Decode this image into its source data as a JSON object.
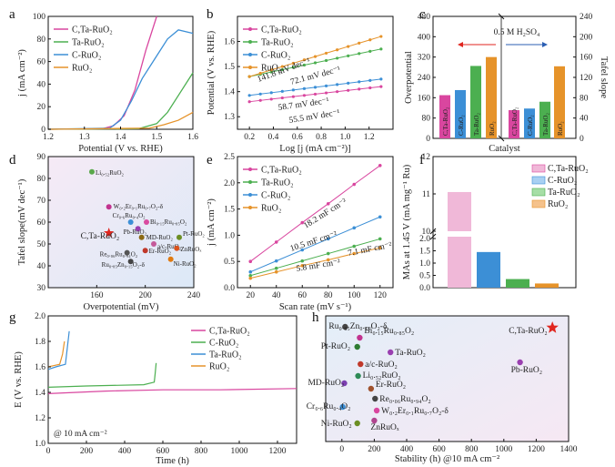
{
  "colors": {
    "ctaruo2": "#d9469f",
    "taruo2": "#4caf50",
    "cruo2": "#3c8fd6",
    "ruo2": "#e6932a",
    "star": "#e0261f"
  },
  "panel_labels": [
    "a",
    "b",
    "c",
    "d",
    "e",
    "f",
    "g",
    "h"
  ],
  "chart_data": [
    {
      "id": "a",
      "type": "line",
      "xlabel": "Potential (V vs. RHE)",
      "ylabel": "j (mA cm⁻²)",
      "xlim": [
        1.2,
        1.6
      ],
      "ylim": [
        0,
        100
      ],
      "xticks": [
        "1.2",
        "1.3",
        "1.4",
        "1.5",
        "1.6"
      ],
      "yticks": [
        "0",
        "20",
        "40",
        "60",
        "80",
        "100"
      ],
      "series": [
        {
          "name": "C,Ta-RuO₂",
          "x": [
            1.2,
            1.35,
            1.38,
            1.41,
            1.44,
            1.47,
            1.5
          ],
          "y": [
            0,
            0.5,
            3,
            12,
            35,
            70,
            100
          ]
        },
        {
          "name": "Ta-RuO₂",
          "x": [
            1.2,
            1.45,
            1.5,
            1.53,
            1.56,
            1.6
          ],
          "y": [
            0,
            0.5,
            5,
            15,
            30,
            50
          ]
        },
        {
          "name": "C-RuO₂",
          "x": [
            1.2,
            1.37,
            1.4,
            1.43,
            1.46,
            1.5,
            1.53,
            1.56,
            1.6
          ],
          "y": [
            0,
            1,
            8,
            25,
            45,
            65,
            80,
            88,
            85
          ]
        },
        {
          "name": "RuO₂",
          "x": [
            1.2,
            1.48,
            1.52,
            1.56,
            1.6
          ],
          "y": [
            0,
            1,
            4,
            8,
            15
          ]
        }
      ]
    },
    {
      "id": "b",
      "type": "line",
      "xlabel": "Log [j (mA cm⁻²)]",
      "ylabel": "Potential (V vs. RHE)",
      "xlim": [
        0.1,
        1.4
      ],
      "ylim": [
        1.25,
        1.7
      ],
      "xticks": [
        "0.2",
        "0.4",
        "0.6",
        "0.8",
        "1.0",
        "1.2"
      ],
      "yticks": [
        "1.3",
        "1.4",
        "1.5",
        "1.6"
      ],
      "series": [
        {
          "name": "C,Ta-RuO₂",
          "x": [
            0.2,
            1.3
          ],
          "y": [
            1.36,
            1.42
          ],
          "label": "55.5 mV dec⁻¹"
        },
        {
          "name": "Ta-RuO₂",
          "x": [
            0.2,
            1.3
          ],
          "y": [
            1.46,
            1.57
          ],
          "label": "72.1 mV dec⁻¹"
        },
        {
          "name": "C-RuO₂",
          "x": [
            0.2,
            1.3
          ],
          "y": [
            1.385,
            1.45
          ],
          "label": "58.7 mV dec⁻¹"
        },
        {
          "name": "RuO₂",
          "x": [
            0.2,
            1.3
          ],
          "y": [
            1.46,
            1.62
          ],
          "label": "141.8 mV dec⁻¹"
        }
      ]
    },
    {
      "id": "c",
      "type": "bar",
      "xlabel": "Catalyst",
      "ylabel": "Overpotential",
      "ylabel_right": "Tafel slope",
      "ylim": [
        0,
        480
      ],
      "ylim_right": [
        0,
        240
      ],
      "yticks": [
        "0",
        "80",
        "160",
        "240",
        "320",
        "400",
        "480"
      ],
      "yticks_right": [
        "0",
        "40",
        "80",
        "120",
        "160",
        "200",
        "240"
      ],
      "note": "0.5 M H₂SO₄",
      "left": {
        "categories": [
          "C,Ta-RuO₂",
          "C-RuO₂",
          "Ta-RuO₂",
          "RuO₂"
        ],
        "values": [
          170,
          190,
          285,
          320
        ]
      },
      "right": {
        "categories": [
          "C,Ta-RuO₂",
          "C-RuO₂",
          "Ta-RuO₂",
          "RuO₂"
        ],
        "values": [
          55.5,
          58.7,
          72.1,
          141.8
        ]
      }
    },
    {
      "id": "d",
      "type": "scatter",
      "xlabel": "Overpotential (mV)",
      "ylabel": "Tafel slope(mV dec⁻¹)",
      "xlim": [
        120,
        240
      ],
      "ylim": [
        30,
        90
      ],
      "xticks": [
        "160",
        "200",
        "240"
      ],
      "yticks": [
        "30",
        "40",
        "50",
        "60",
        "70",
        "80",
        "90"
      ],
      "points": [
        {
          "name": "Li₀.₅₂RuO₂",
          "x": 156,
          "y": 83
        },
        {
          "name": "W₀.₂Er₀.₁Ru₀.₇O₂-δ",
          "x": 170,
          "y": 67
        },
        {
          "name": "C,Ta-RuO₂",
          "x": 170,
          "y": 55
        },
        {
          "name": "Cr₀.₆Ru₀.₄O₂",
          "x": 188,
          "y": 60
        },
        {
          "name": "Pb-RuO₂",
          "x": 194,
          "y": 57
        },
        {
          "name": "Bi₀.₁₅Ru₀.₈₅O₂",
          "x": 201,
          "y": 60
        },
        {
          "name": "MD-RuO₂",
          "x": 197,
          "y": 53
        },
        {
          "name": "Pt-RuO₂",
          "x": 228,
          "y": 53
        },
        {
          "name": "a/c-RuO₂",
          "x": 207,
          "y": 50
        },
        {
          "name": "Er-RuO₂",
          "x": 200,
          "y": 47
        },
        {
          "name": "Re₀.₀₆Ru₀.₉₄O₂",
          "x": 185,
          "y": 46
        },
        {
          "name": "ZnRuOₓ",
          "x": 226,
          "y": 48
        },
        {
          "name": "Ru₀.₈₅Zn₀.₁₅O₂-δ",
          "x": 188,
          "y": 42
        },
        {
          "name": "Ni-RuO₂",
          "x": 221,
          "y": 43
        }
      ]
    },
    {
      "id": "e",
      "type": "line",
      "xlabel": "Scan rate (mV s⁻¹)",
      "ylabel": "j (mA cm⁻²)",
      "xlim": [
        10,
        130
      ],
      "ylim": [
        0,
        2.5
      ],
      "xticks": [
        "20",
        "40",
        "60",
        "80",
        "100",
        "120"
      ],
      "yticks": [
        "0.0",
        "0.5",
        "1.0",
        "1.5",
        "2.0",
        "2.5"
      ],
      "x": [
        20,
        40,
        60,
        80,
        100,
        120
      ],
      "series": [
        {
          "name": "C,Ta-RuO₂",
          "values": [
            0.5,
            0.87,
            1.24,
            1.6,
            1.97,
            2.33
          ],
          "label": "18.2 mF cm⁻²"
        },
        {
          "name": "Ta-RuO₂",
          "values": [
            0.23,
            0.37,
            0.51,
            0.65,
            0.79,
            0.93
          ],
          "label": "7.1 mF cm⁻²"
        },
        {
          "name": "C-RuO₂",
          "values": [
            0.3,
            0.51,
            0.72,
            0.93,
            1.14,
            1.35
          ],
          "label": "10.5 mF cm⁻²"
        },
        {
          "name": "RuO₂",
          "values": [
            0.18,
            0.3,
            0.42,
            0.53,
            0.65,
            0.76
          ],
          "label": "5.8 mF cm⁻²"
        }
      ]
    },
    {
      "id": "f",
      "type": "bar",
      "xlabel": "",
      "ylabel": "MAs at 1.45 V (mA mg⁻¹ Ru)",
      "yticks": [
        "0.0",
        "0.5",
        "1.0",
        "1.5",
        "2.0",
        "10",
        "11",
        "12"
      ],
      "categories": [
        "C,Ta-RuO₂",
        "C-RuO₂",
        "Ta-RuO₂",
        "RuO₂"
      ],
      "values": [
        11.05,
        1.45,
        0.35,
        0.17
      ]
    },
    {
      "id": "g",
      "type": "line",
      "xlabel": "Time (h)",
      "ylabel": "E (V vs. RHE)",
      "xlim": [
        0,
        1300
      ],
      "ylim": [
        1.0,
        2.0
      ],
      "xticks": [
        "0",
        "200",
        "400",
        "600",
        "800",
        "1000",
        "1200"
      ],
      "yticks": [
        "1.0",
        "1.2",
        "1.4",
        "1.6",
        "1.8",
        "2.0"
      ],
      "note": "@ 10 mA cm⁻²",
      "series": [
        {
          "name": "C,Ta-RuO₂",
          "x": [
            0,
            300,
            600,
            900,
            1300
          ],
          "y": [
            1.39,
            1.41,
            1.42,
            1.42,
            1.43
          ]
        },
        {
          "name": "C-RuO₂",
          "x": [
            0,
            200,
            500,
            555,
            560,
            565
          ],
          "y": [
            1.44,
            1.45,
            1.46,
            1.48,
            1.55,
            1.63
          ]
        },
        {
          "name": "Ta-RuO₂",
          "x": [
            0,
            40,
            90,
            100,
            110
          ],
          "y": [
            1.58,
            1.6,
            1.62,
            1.75,
            1.88
          ]
        },
        {
          "name": "RuO₂",
          "x": [
            0,
            30,
            60,
            75,
            85
          ],
          "y": [
            1.6,
            1.61,
            1.62,
            1.7,
            1.8
          ]
        }
      ]
    },
    {
      "id": "h",
      "type": "scatter",
      "xlabel": "Stability (h) @10 mA cm⁻²",
      "xlim": [
        -100,
        1400
      ],
      "xticks": [
        "0",
        "200",
        "400",
        "600",
        "800",
        "1000",
        "1200",
        "1400"
      ],
      "points": [
        {
          "name": "Ru₀.₈₅Zn₀.₁₅O₂-δ",
          "x": 20
        },
        {
          "name": "Bi₀.₁₅Ru₀.₈₅O₂",
          "x": 110
        },
        {
          "name": "Pt-RuO₂",
          "x": 95
        },
        {
          "name": "Ta-RuO₂",
          "x": 300
        },
        {
          "name": "a/c-RuO₂",
          "x": 115
        },
        {
          "name": "Li₀.₅₂RuO₂",
          "x": 100
        },
        {
          "name": "MD-RuO₂",
          "x": 15
        },
        {
          "name": "Er-RuO₂",
          "x": 180
        },
        {
          "name": "Cr₀.₆Ru₀.₄O₂",
          "x": 5
        },
        {
          "name": "Re₀.₀₆Ru₀.₉₄O₂",
          "x": 205
        },
        {
          "name": "W₀.₂Er₀.₁Ru₀.₇O₂-δ",
          "x": 215
        },
        {
          "name": "Ni-RuO₂",
          "x": 95
        },
        {
          "name": "ZnRuOₓ",
          "x": 200
        },
        {
          "name": "Pb-RuO₂",
          "x": 1100
        },
        {
          "name": "C,Ta-RuO₂",
          "x": 1300
        }
      ]
    }
  ]
}
